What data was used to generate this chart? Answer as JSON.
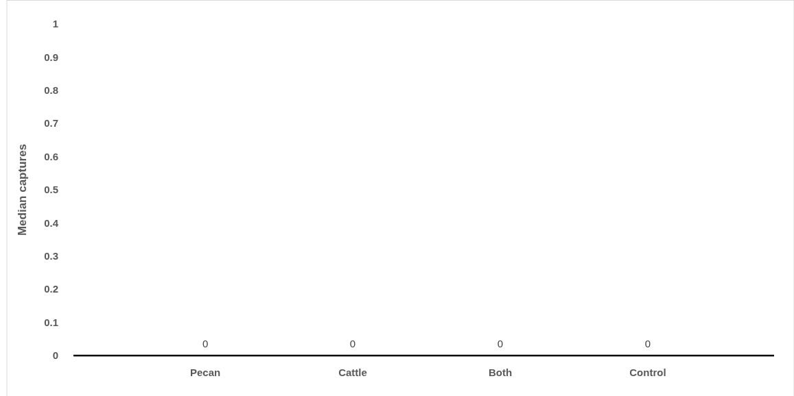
{
  "chart_data": {
    "type": "bar",
    "ylabel": "Median captures",
    "categories": [
      "Pecan",
      "Cattle",
      "Both",
      "Control"
    ],
    "values": [
      0,
      0,
      0,
      0
    ],
    "data_labels": true,
    "ylim": [
      0,
      1
    ],
    "yticks": [
      0,
      0.1,
      0.2,
      0.3,
      0.4,
      0.5,
      0.6,
      0.7,
      0.8,
      0.9,
      1
    ],
    "grid": false
  }
}
